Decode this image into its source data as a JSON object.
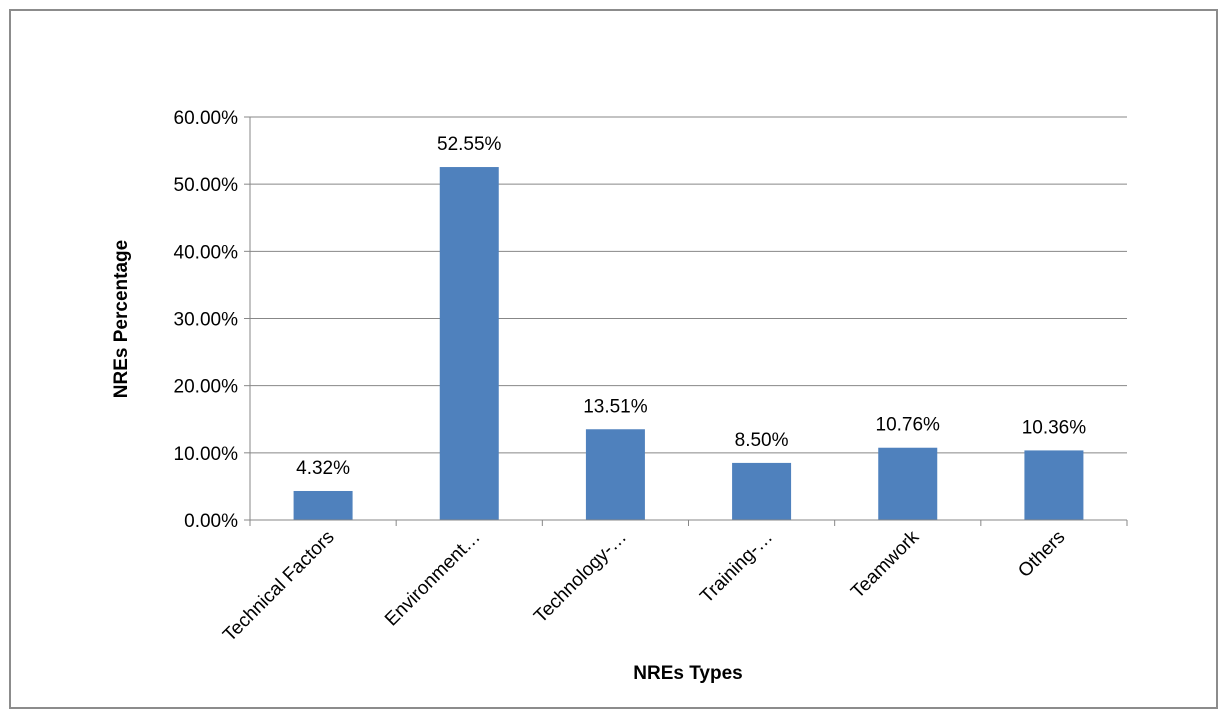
{
  "chart_data": {
    "type": "bar",
    "title": "",
    "xlabel": "NREs Types",
    "ylabel": "NREs Percentage",
    "categories": [
      "Technical Factors",
      "Environment…",
      "Technology-…",
      "Training-…",
      "Teamwork",
      "Others"
    ],
    "values": [
      4.32,
      52.55,
      13.51,
      8.5,
      10.76,
      10.36
    ],
    "data_labels": [
      "4.32%",
      "52.55%",
      "13.51%",
      "8.50%",
      "10.76%",
      "10.36%"
    ],
    "ylim": [
      0,
      60
    ],
    "yticks": [
      0,
      10,
      20,
      30,
      40,
      50,
      60
    ],
    "ytick_labels": [
      "0.00%",
      "10.00%",
      "20.00%",
      "30.00%",
      "40.00%",
      "50.00%",
      "60.00%"
    ],
    "grid": true,
    "legend": "none",
    "bar_color": "#4f81bd",
    "grid_color": "#878787"
  }
}
